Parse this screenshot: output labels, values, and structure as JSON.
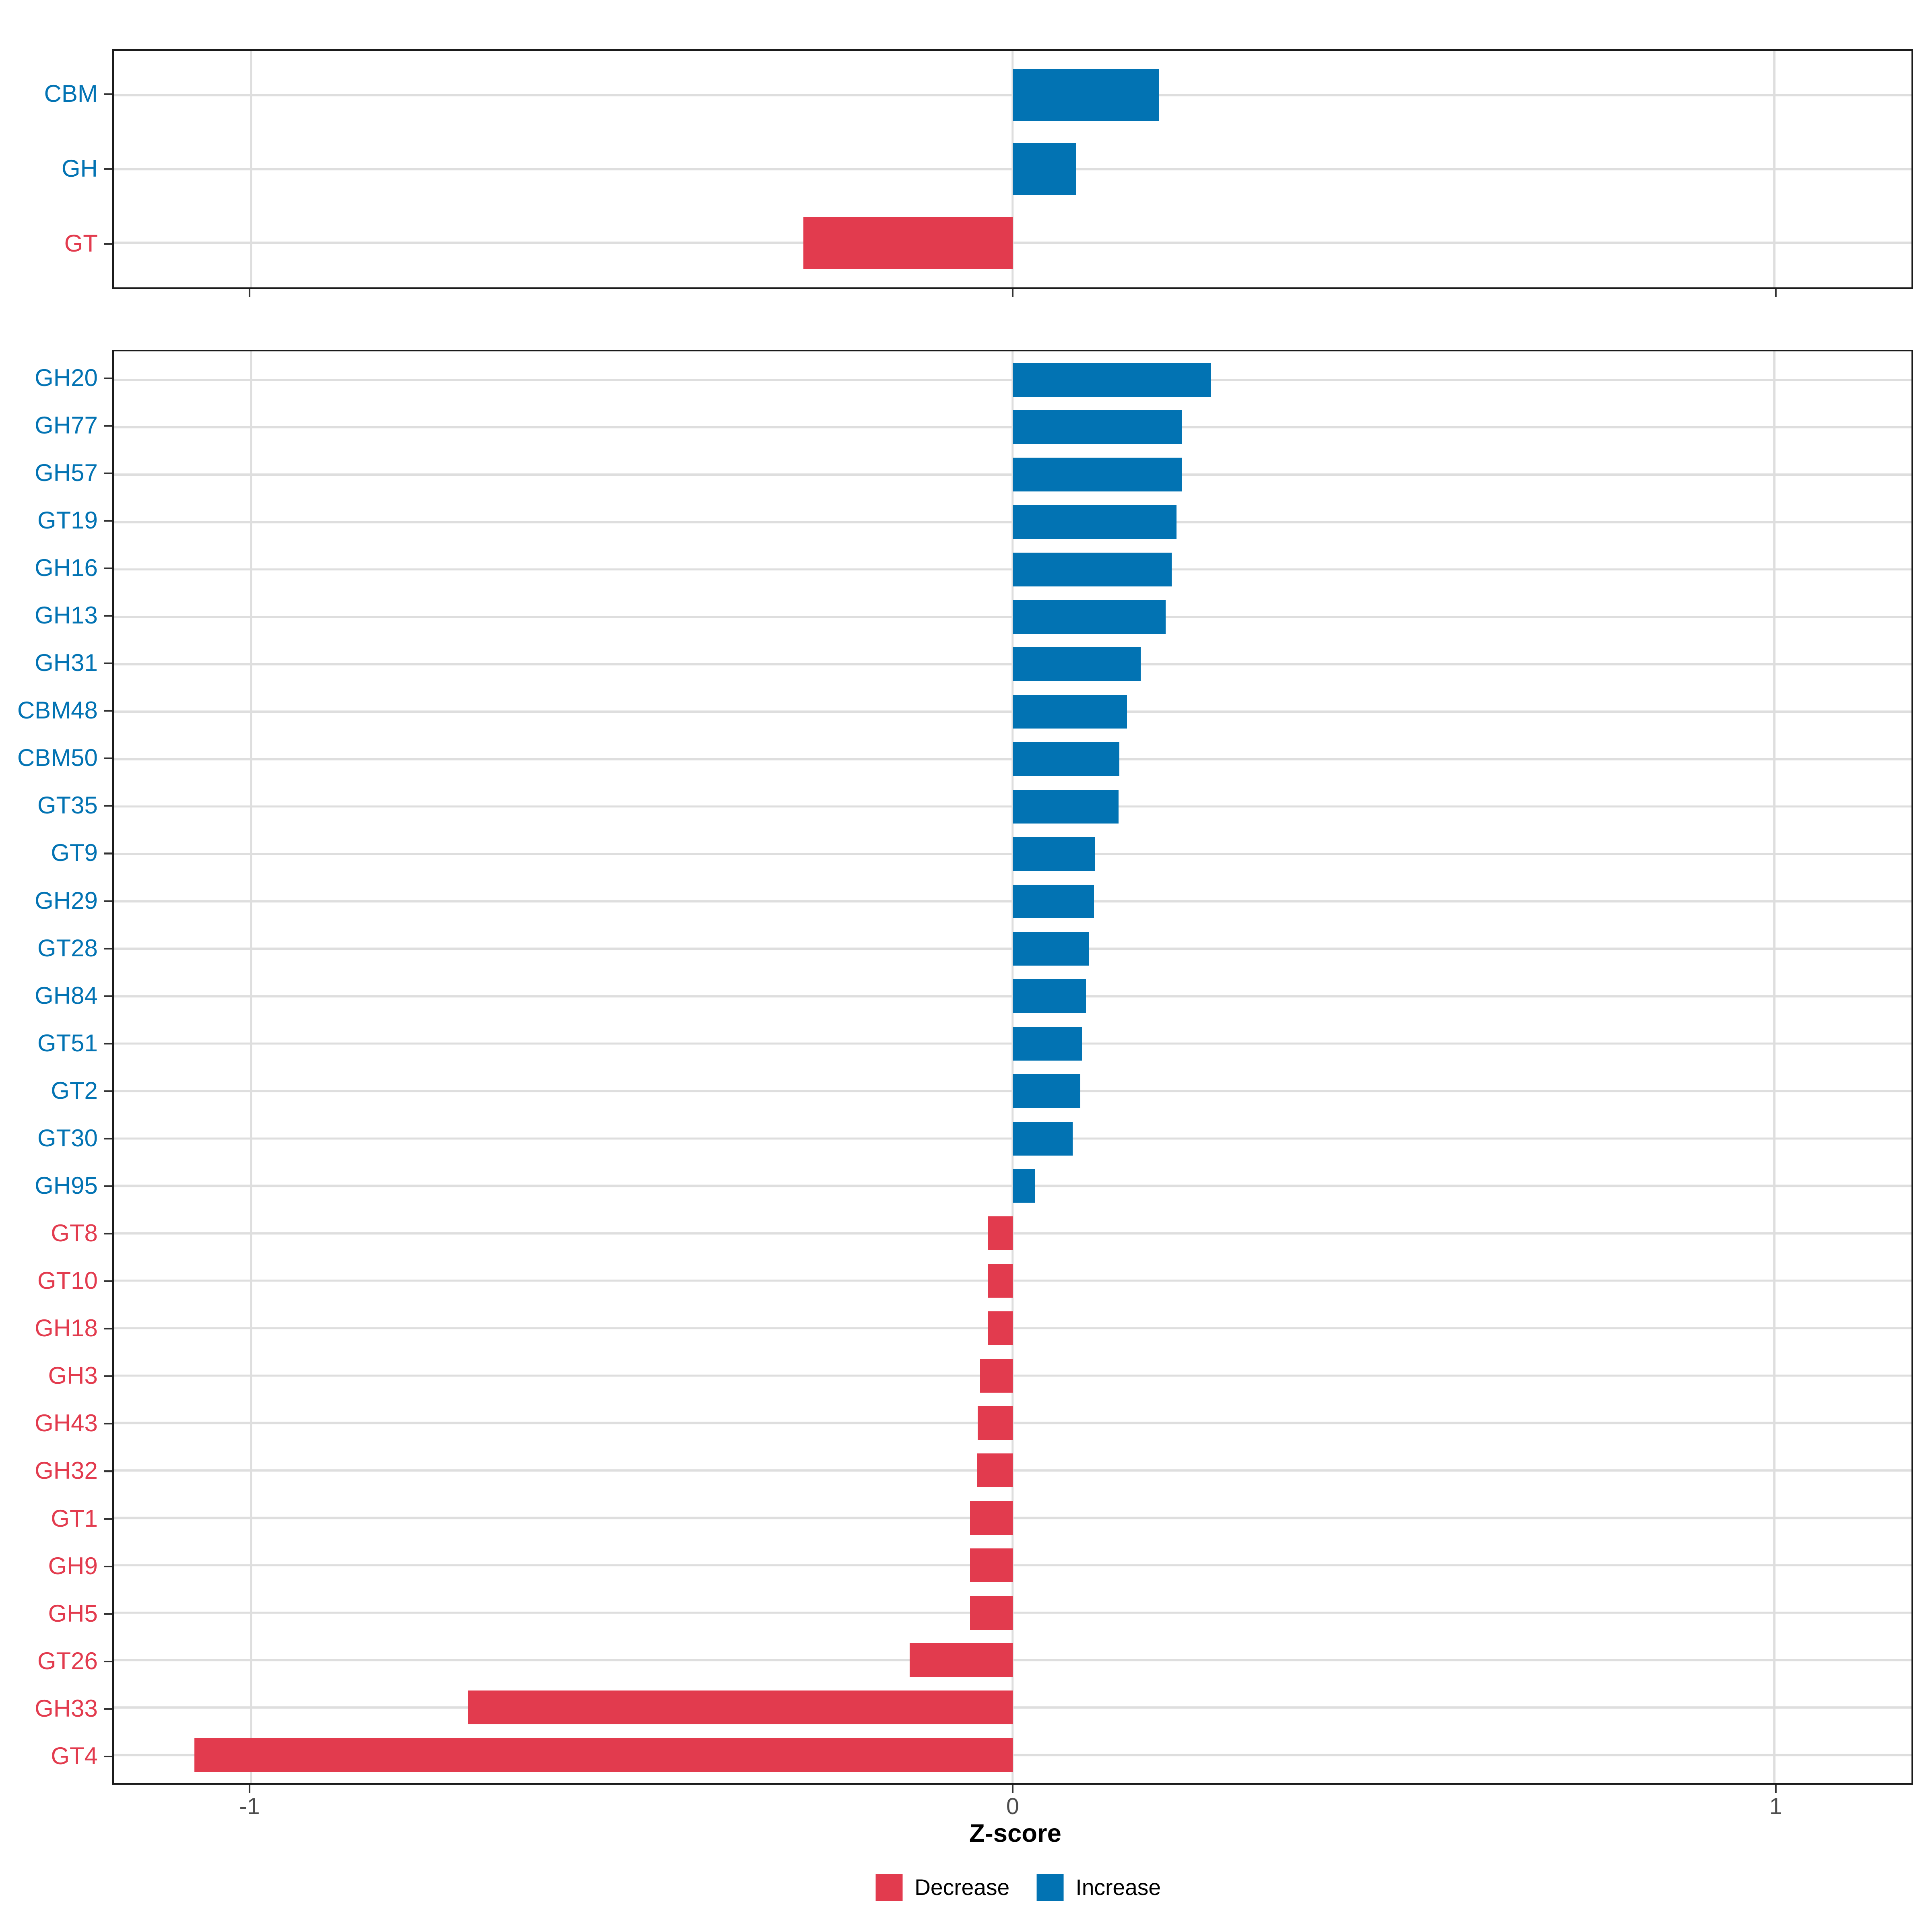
{
  "colors": {
    "increase": "#0273B3",
    "decrease": "#E23B4E",
    "grid": "#DEDEDE",
    "axis_text": "#4D4D4D",
    "panel_border": "#1B1B1B",
    "background": "#FFFFFF"
  },
  "x_axis": {
    "title": "Z-score",
    "limits": [
      -1.18,
      1.18
    ],
    "ticks": [
      {
        "label": "-1",
        "value": -1
      },
      {
        "label": "0",
        "value": 0
      },
      {
        "label": "1",
        "value": 1
      }
    ]
  },
  "legend": {
    "items": [
      {
        "label": "Decrease",
        "key": "decrease"
      },
      {
        "label": "Increase",
        "key": "increase"
      }
    ]
  },
  "chart_data": [
    {
      "type": "bar",
      "orientation": "horizontal",
      "panel": "cazyme-classes",
      "categories": [
        "CBM",
        "GH",
        "GT"
      ],
      "values": [
        0.192,
        0.083,
        -0.275
      ],
      "xlabel": "Z-score",
      "xlim": [
        -1.18,
        1.18
      ],
      "xticks": [
        -1,
        0,
        1
      ],
      "grid": true,
      "color_rule": "positive = increase (blue), negative = decrease (red)",
      "legend_position": "bottom"
    },
    {
      "type": "bar",
      "orientation": "horizontal",
      "panel": "cazyme-families",
      "categories": [
        "GH20",
        "GH77",
        "GH57",
        "GT19",
        "GH16",
        "GH13",
        "GH31",
        "CBM48",
        "CBM50",
        "GT35",
        "GT9",
        "GH29",
        "GT28",
        "GH84",
        "GT51",
        "GT2",
        "GT30",
        "GH95",
        "GT8",
        "GT10",
        "GH18",
        "GH3",
        "GH43",
        "GH32",
        "GT1",
        "GH9",
        "GH5",
        "GT26",
        "GH33",
        "GT4"
      ],
      "values": [
        0.26,
        0.222,
        0.222,
        0.215,
        0.209,
        0.201,
        0.168,
        0.15,
        0.14,
        0.139,
        0.108,
        0.107,
        0.1,
        0.096,
        0.091,
        0.089,
        0.079,
        0.029,
        -0.032,
        -0.032,
        -0.032,
        -0.043,
        -0.046,
        -0.047,
        -0.056,
        -0.056,
        -0.056,
        -0.135,
        -0.715,
        -1.074
      ],
      "xlabel": "Z-score",
      "xlim": [
        -1.18,
        1.18
      ],
      "xticks": [
        -1,
        0,
        1
      ],
      "grid": true,
      "color_rule": "positive = increase (blue), negative = decrease (red)",
      "legend_position": "bottom"
    }
  ]
}
